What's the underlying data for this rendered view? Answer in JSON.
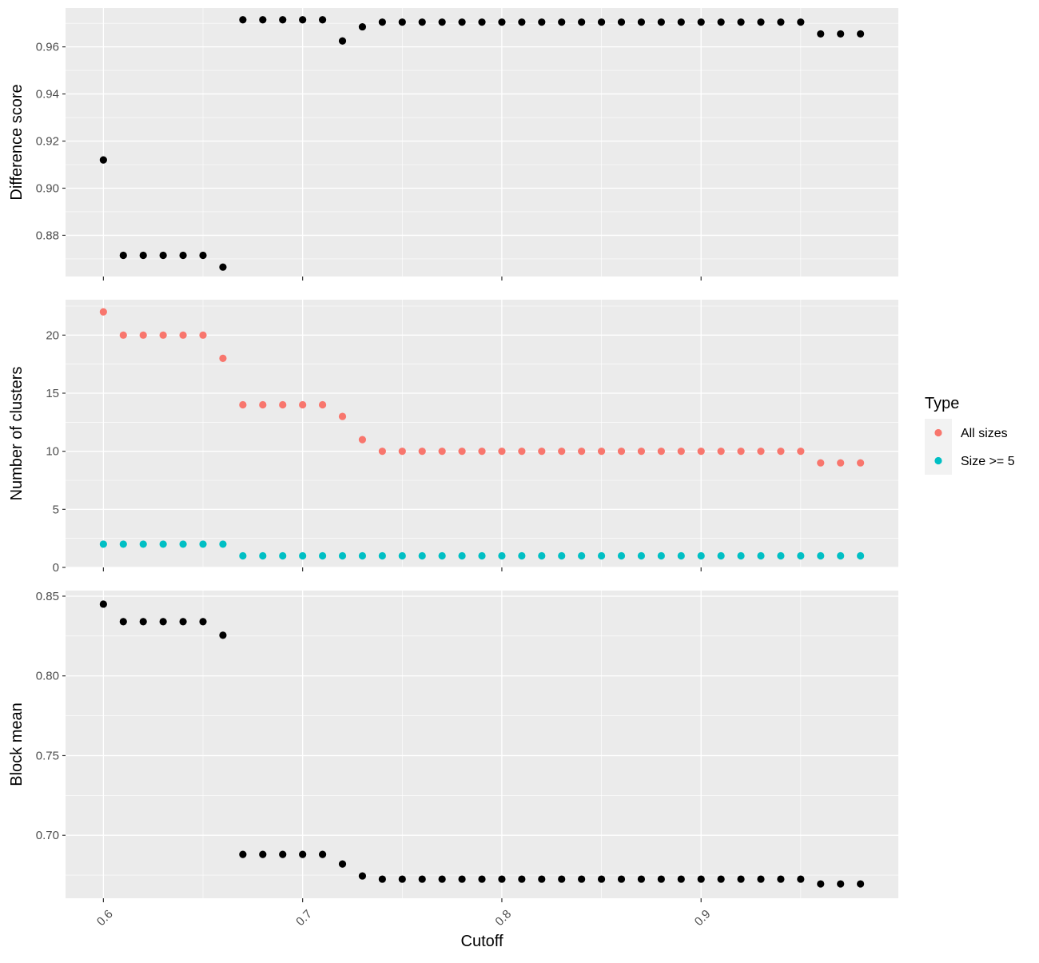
{
  "chart_data": {
    "type": "scatter",
    "xlabel": "Cutoff",
    "x": [
      0.6,
      0.61,
      0.62,
      0.63,
      0.64,
      0.65,
      0.66,
      0.67,
      0.68,
      0.69,
      0.7,
      0.71,
      0.72,
      0.73,
      0.74,
      0.75,
      0.76,
      0.77,
      0.78,
      0.79,
      0.8,
      0.81,
      0.82,
      0.83,
      0.84,
      0.85,
      0.86,
      0.87,
      0.88,
      0.89,
      0.9,
      0.91,
      0.92,
      0.93,
      0.94,
      0.95,
      0.96,
      0.97,
      0.98
    ],
    "xlim": [
      0.581,
      0.999
    ],
    "xticks": [
      0.6,
      0.7,
      0.8,
      0.9
    ],
    "xtick_labels": [
      "0.6",
      "0.7",
      "0.8",
      "0.9"
    ],
    "panels": [
      {
        "ylabel": "Difference score",
        "ylim": [
          0.8625,
          0.9765
        ],
        "yticks": [
          0.88,
          0.9,
          0.92,
          0.94,
          0.96
        ],
        "ytick_labels": [
          "0.88",
          "0.90",
          "0.92",
          "0.94",
          "0.96"
        ],
        "series": [
          {
            "color": "#000000",
            "values": [
              0.912,
              0.8715,
              0.8715,
              0.8715,
              0.8715,
              0.8715,
              0.8665,
              0.9715,
              0.9715,
              0.9715,
              0.9715,
              0.9715,
              0.9625,
              0.9685,
              0.9705,
              0.9705,
              0.9705,
              0.9705,
              0.9705,
              0.9705,
              0.9705,
              0.9705,
              0.9705,
              0.9705,
              0.9705,
              0.9705,
              0.9705,
              0.9705,
              0.9705,
              0.9705,
              0.9705,
              0.9705,
              0.9705,
              0.9705,
              0.9705,
              0.9705,
              0.9655,
              0.9655,
              0.9655
            ]
          }
        ]
      },
      {
        "ylabel": "Number of clusters",
        "ylim": [
          0,
          23.05
        ],
        "yticks": [
          0,
          5,
          10,
          15,
          20
        ],
        "ytick_labels": [
          "0",
          "5",
          "10",
          "15",
          "20"
        ],
        "series": [
          {
            "name": "All sizes",
            "color": "#F8766D",
            "values": [
              22,
              20,
              20,
              20,
              20,
              20,
              18,
              14,
              14,
              14,
              14,
              14,
              13,
              11,
              10,
              10,
              10,
              10,
              10,
              10,
              10,
              10,
              10,
              10,
              10,
              10,
              10,
              10,
              10,
              10,
              10,
              10,
              10,
              10,
              10,
              10,
              9,
              9,
              9
            ]
          },
          {
            "name": "Size >= 5",
            "color": "#00BFC4",
            "values": [
              2,
              2,
              2,
              2,
              2,
              2,
              2,
              1,
              1,
              1,
              1,
              1,
              1,
              1,
              1,
              1,
              1,
              1,
              1,
              1,
              1,
              1,
              1,
              1,
              1,
              1,
              1,
              1,
              1,
              1,
              1,
              1,
              1,
              1,
              1,
              1,
              1,
              1,
              1
            ]
          }
        ]
      },
      {
        "ylabel": "Block mean",
        "ylim": [
          0.6605,
          0.8535
        ],
        "yticks": [
          0.7,
          0.75,
          0.8,
          0.85
        ],
        "ytick_labels": [
          "0.70",
          "0.75",
          "0.80",
          "0.85"
        ],
        "series": [
          {
            "color": "#000000",
            "values": [
              0.845,
              0.834,
              0.834,
              0.834,
              0.834,
              0.834,
              0.8255,
              0.688,
              0.688,
              0.688,
              0.688,
              0.688,
              0.682,
              0.6745,
              0.6725,
              0.6725,
              0.6725,
              0.6725,
              0.6725,
              0.6725,
              0.6725,
              0.6725,
              0.6725,
              0.6725,
              0.6725,
              0.6725,
              0.6725,
              0.6725,
              0.6725,
              0.6725,
              0.6725,
              0.6725,
              0.6725,
              0.6725,
              0.6725,
              0.6725,
              0.6695,
              0.6695,
              0.6695
            ]
          }
        ]
      }
    ],
    "legend": {
      "title": "Type",
      "position": "right",
      "entries": [
        {
          "label": "All sizes",
          "color": "#F8766D"
        },
        {
          "label": "Size >= 5",
          "color": "#00BFC4"
        }
      ]
    },
    "grid": true,
    "panel_background": "#EBEBEB",
    "grid_color": "#FFFFFF"
  }
}
